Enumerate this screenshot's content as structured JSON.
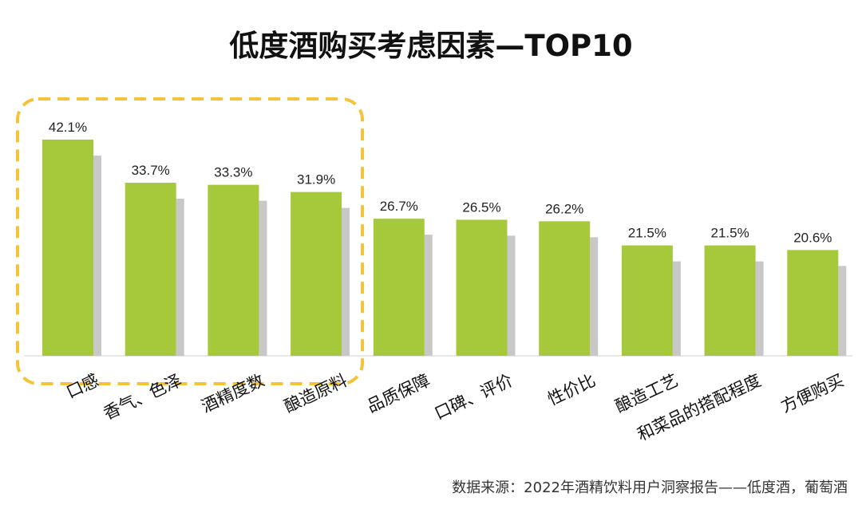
{
  "colors": {
    "bar": "#a6c93c",
    "shadow": "#c8c8c8",
    "highlight_border": "#f3c43a",
    "baseline": "#d0d0d0"
  },
  "source": "数据来源：2022年酒精饮料用户洞察报告——低度酒，葡萄酒",
  "chart_data": {
    "type": "bar",
    "title": "低度酒购买考虑因素—TOP10",
    "categories": [
      "口感",
      "香气、色泽",
      "酒精度数",
      "酿造原料",
      "品质保障",
      "口碑、评价",
      "性价比",
      "酿造工艺",
      "和菜品的搭配程度",
      "方便购买"
    ],
    "values": [
      42.1,
      33.7,
      33.3,
      31.9,
      26.7,
      26.5,
      26.2,
      21.5,
      21.5,
      20.6
    ],
    "value_labels": [
      "42.1%",
      "33.7%",
      "33.3%",
      "31.9%",
      "26.7%",
      "26.5%",
      "26.2%",
      "21.5%",
      "21.5%",
      "20.6%"
    ],
    "unit": "%",
    "ylim": [
      0,
      42.1
    ],
    "grid": false,
    "highlighted_categories": [
      "口感",
      "香气、色泽",
      "酒精度数",
      "酿造原料"
    ]
  }
}
